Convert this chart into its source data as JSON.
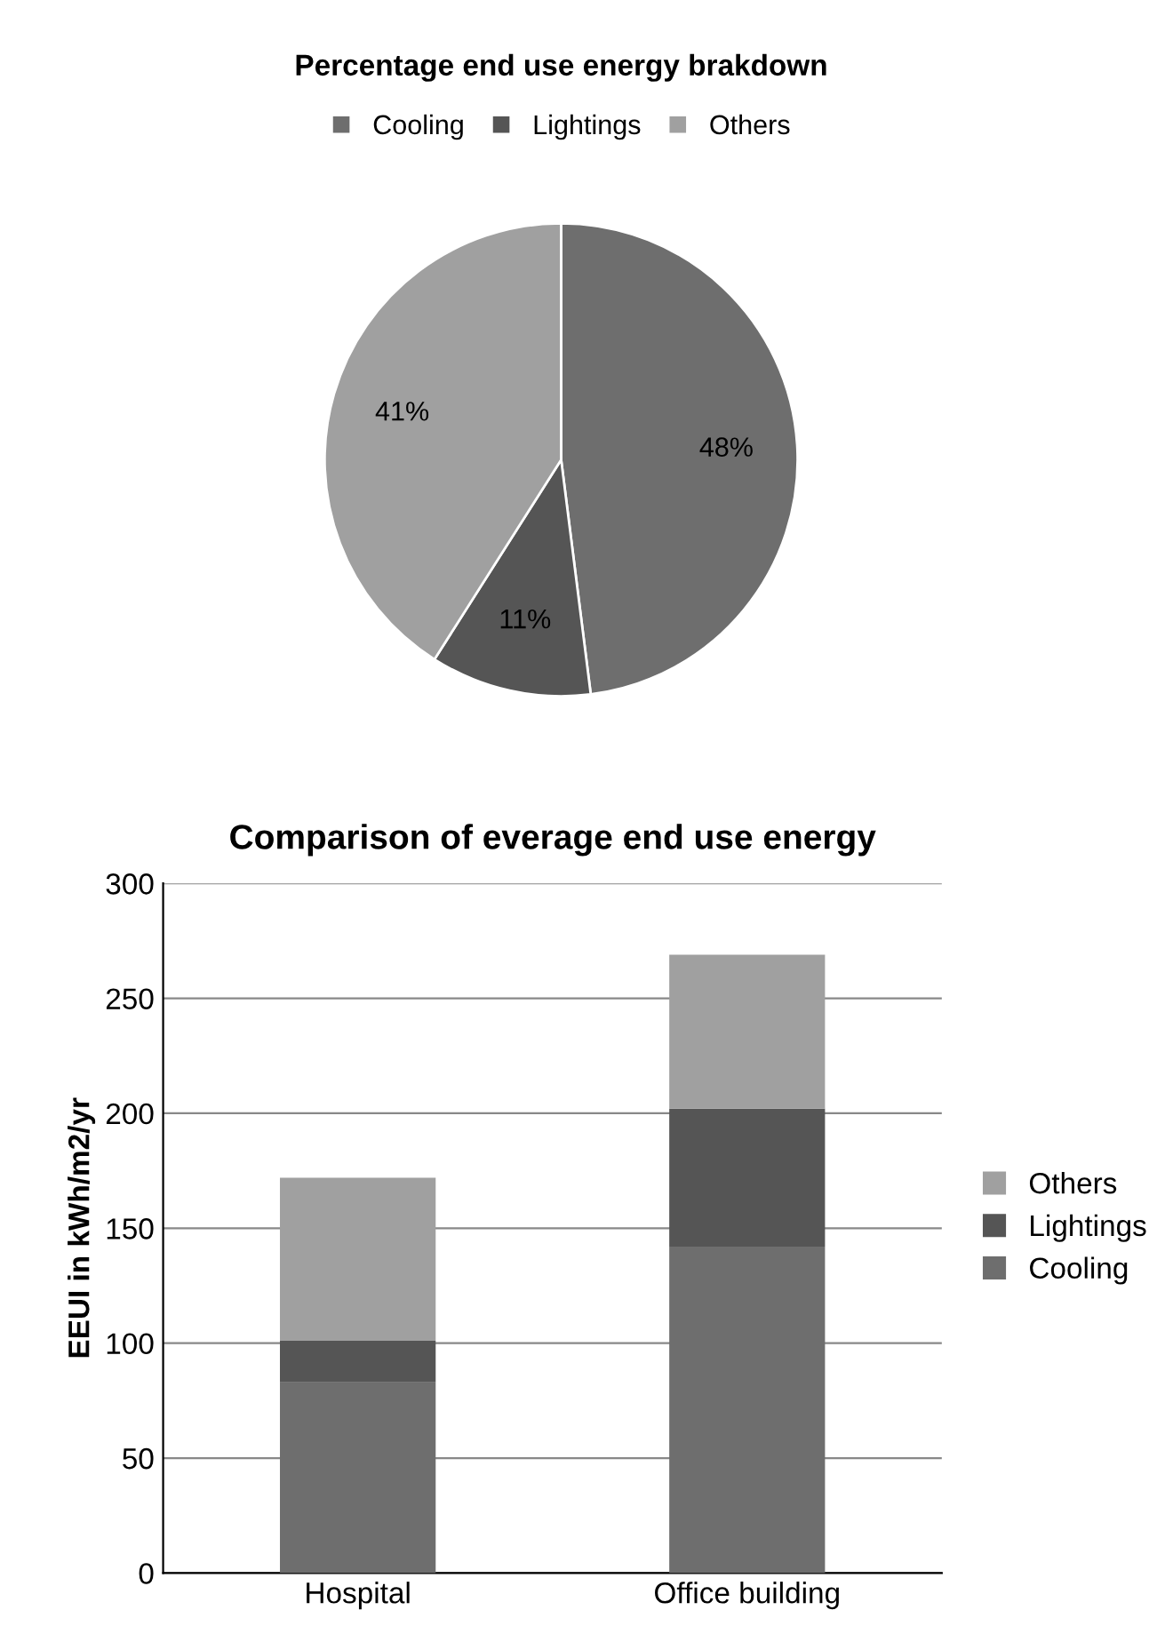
{
  "chart_data": [
    {
      "type": "pie",
      "title": "Percentage end use energy brakdown",
      "categories": [
        "Cooling",
        "Lightings",
        "Others"
      ],
      "values": [
        48,
        11,
        41
      ],
      "colors": [
        "#6e6e6e",
        "#555555",
        "#a0a0a0"
      ],
      "value_labels": [
        "48%",
        "11%",
        "41%"
      ],
      "legend": "top"
    },
    {
      "type": "bar",
      "title": "Comparison of everage end use energy",
      "ylabel": "EEUI in kWh/m2/yr",
      "categories": [
        "Hospital",
        "Office building"
      ],
      "stacked": true,
      "series": [
        {
          "name": "Cooling",
          "color": "#6e6e6e",
          "values": [
            83,
            142
          ]
        },
        {
          "name": "Lightings",
          "color": "#555555",
          "values": [
            18,
            60
          ]
        },
        {
          "name": "Others",
          "color": "#a0a0a0",
          "values": [
            71,
            67
          ]
        }
      ],
      "ylim": [
        0,
        300
      ],
      "yticks": [
        0,
        50,
        100,
        150,
        200,
        250,
        300
      ],
      "grid": "y",
      "legend": "right"
    }
  ]
}
